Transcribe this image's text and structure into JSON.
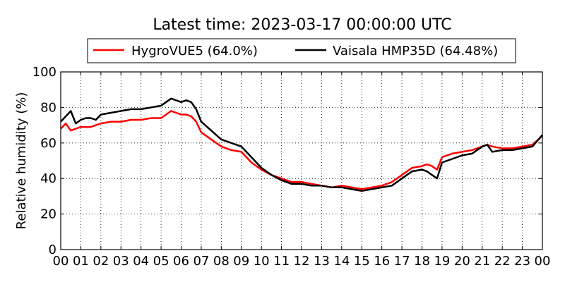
{
  "chart_data": {
    "type": "line",
    "title": "Latest time: 2023-03-17 00:00:00 UTC",
    "xlabel": "",
    "ylabel": "Relative humidity (%)",
    "xlim": [
      0,
      24
    ],
    "ylim": [
      0,
      100
    ],
    "grid": true,
    "legend_position": "top",
    "x_tick_labels": [
      "00",
      "01",
      "02",
      "03",
      "04",
      "05",
      "06",
      "07",
      "08",
      "09",
      "10",
      "11",
      "12",
      "13",
      "14",
      "15",
      "16",
      "17",
      "18",
      "19",
      "20",
      "21",
      "22",
      "23",
      "00"
    ],
    "y_ticks": [
      0,
      20,
      40,
      60,
      80,
      100
    ],
    "x": [
      0.0,
      0.25,
      0.5,
      0.75,
      1.0,
      1.25,
      1.5,
      1.75,
      2.0,
      2.5,
      3.0,
      3.5,
      4.0,
      4.5,
      5.0,
      5.25,
      5.5,
      5.75,
      6.0,
      6.25,
      6.5,
      6.75,
      7.0,
      7.5,
      8.0,
      8.5,
      9.0,
      9.5,
      10.0,
      10.5,
      11.0,
      11.5,
      12.0,
      12.5,
      13.0,
      13.5,
      14.0,
      14.5,
      15.0,
      15.5,
      16.0,
      16.5,
      17.0,
      17.5,
      18.0,
      18.25,
      18.5,
      18.75,
      19.0,
      19.5,
      20.0,
      20.5,
      21.0,
      21.25,
      21.5,
      22.0,
      22.5,
      23.0,
      23.5,
      24.0
    ],
    "series": [
      {
        "name": "HygroVUE5 (64.0%)",
        "color": "#ff0000",
        "values": [
          68,
          71,
          67,
          68,
          69,
          69,
          69,
          70,
          71,
          72,
          72,
          73,
          73,
          74,
          74,
          76,
          78,
          77,
          76,
          76,
          75,
          72,
          66,
          62,
          58,
          56,
          55,
          49,
          45,
          42,
          40,
          38,
          38,
          37,
          36,
          35,
          36,
          35,
          34,
          35,
          36,
          38,
          42,
          46,
          47,
          48,
          47,
          45,
          52,
          54,
          55,
          56,
          58,
          59,
          58,
          57,
          57,
          58,
          59,
          64
        ]
      },
      {
        "name": "Vaisala HMP35D (64.48%)",
        "color": "#000000",
        "values": [
          72,
          75,
          78,
          71,
          73,
          74,
          74,
          73,
          76,
          77,
          78,
          79,
          79,
          80,
          81,
          83,
          85,
          84,
          83,
          84,
          83,
          79,
          72,
          67,
          62,
          60,
          58,
          52,
          46,
          42,
          39,
          37,
          37,
          36,
          36,
          35,
          35,
          34,
          33,
          34,
          35,
          36,
          40,
          44,
          45,
          44,
          42,
          40,
          49,
          51,
          53,
          54,
          58,
          59,
          55,
          56,
          56,
          57,
          58,
          64.5
        ]
      }
    ]
  }
}
